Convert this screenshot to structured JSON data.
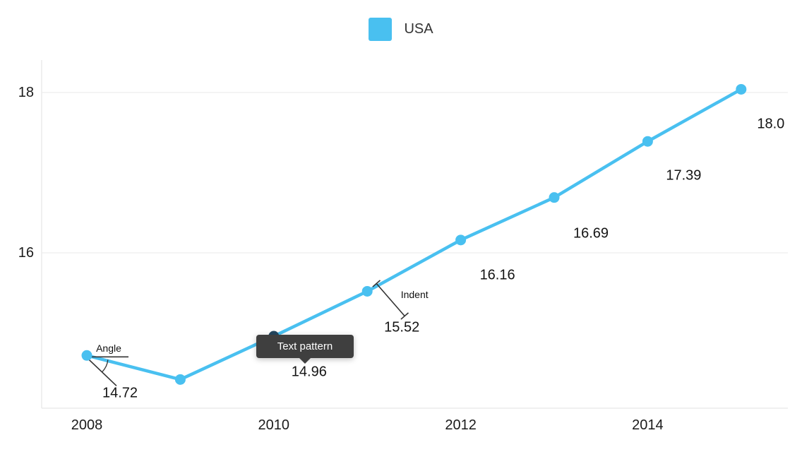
{
  "chart_data": {
    "type": "line",
    "title": "",
    "legend_position": "top-center",
    "grid": "horizontal",
    "categories": [
      "2008",
      "2009",
      "2010",
      "2011",
      "2012",
      "2013",
      "2014",
      "2015"
    ],
    "series": [
      {
        "name": "USA",
        "color": "#49C0F0",
        "values": [
          14.72,
          14.42,
          14.96,
          15.52,
          16.16,
          16.69,
          17.39,
          18.04
        ]
      }
    ],
    "point_labels": [
      "14.72",
      "",
      "14.96",
      "15.52",
      "16.16",
      "16.69",
      "17.39",
      "18.0"
    ],
    "highlighted_point": {
      "category": "2010",
      "color": "#24465E"
    },
    "x_tick_labels": [
      {
        "label": "2008",
        "index": 0
      },
      {
        "label": "2010",
        "index": 2
      },
      {
        "label": "2012",
        "index": 4
      },
      {
        "label": "2014",
        "index": 6
      }
    ],
    "y_ticks": [
      {
        "label": "16",
        "value": 16
      },
      {
        "label": "18",
        "value": 18
      }
    ],
    "ylim": [
      14,
      18.4
    ],
    "annotations": [
      {
        "type": "angle-callout",
        "text": "Angle",
        "category": "2008"
      },
      {
        "type": "tooltip",
        "text": "Text pattern",
        "category": "2010"
      },
      {
        "type": "indent-callout",
        "text": "Indent",
        "category": "2011"
      }
    ],
    "colors": {
      "line": "#49C0F0",
      "grid": "#EAEAEA",
      "axis": "#E2E2E2",
      "label": "#141414",
      "annotation": "#333333",
      "tooltip_bg": "#3F3F3F",
      "tooltip_text": "#FFFFFF"
    }
  }
}
